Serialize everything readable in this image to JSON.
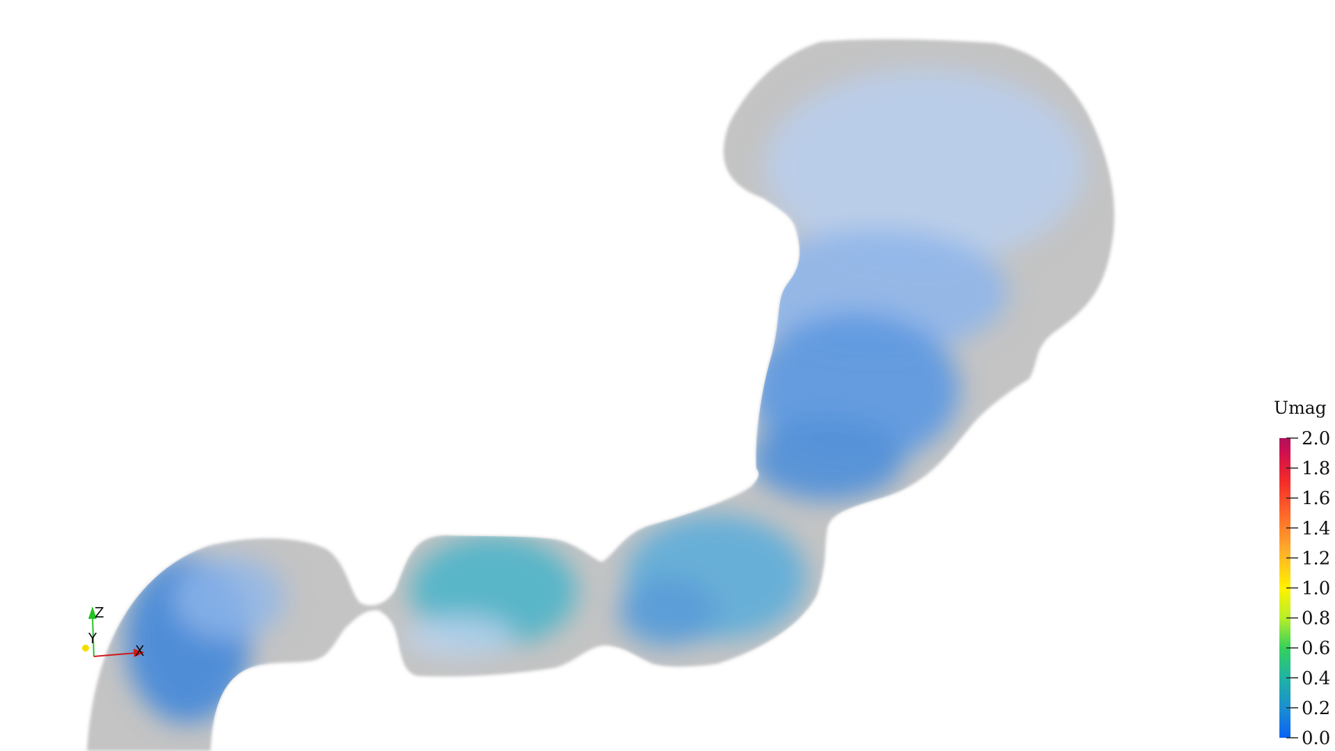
{
  "scene": {
    "background_color": "#ffffff",
    "wall_color": "#c4c4c4"
  },
  "colorbar": {
    "title": "Umag",
    "ticks": [
      "2.0",
      "1.8",
      "1.6",
      "1.4",
      "1.2",
      "1.0",
      "0.8",
      "0.6",
      "0.4",
      "0.2",
      "0.0"
    ],
    "colors": [
      "#0a62f5",
      "#1b8fd0",
      "#1fb3a4",
      "#35d15c",
      "#b8ee2a",
      "#fff200",
      "#ffb02a",
      "#ff6b2a",
      "#f22a2a",
      "#d0104f",
      "#b0105a"
    ]
  },
  "axes_triad": {
    "z_label": "Z",
    "y_label": "Y",
    "x_label": "X",
    "z_color": "#22c322",
    "y_color": "#f0e000",
    "x_color": "#d01818"
  }
}
